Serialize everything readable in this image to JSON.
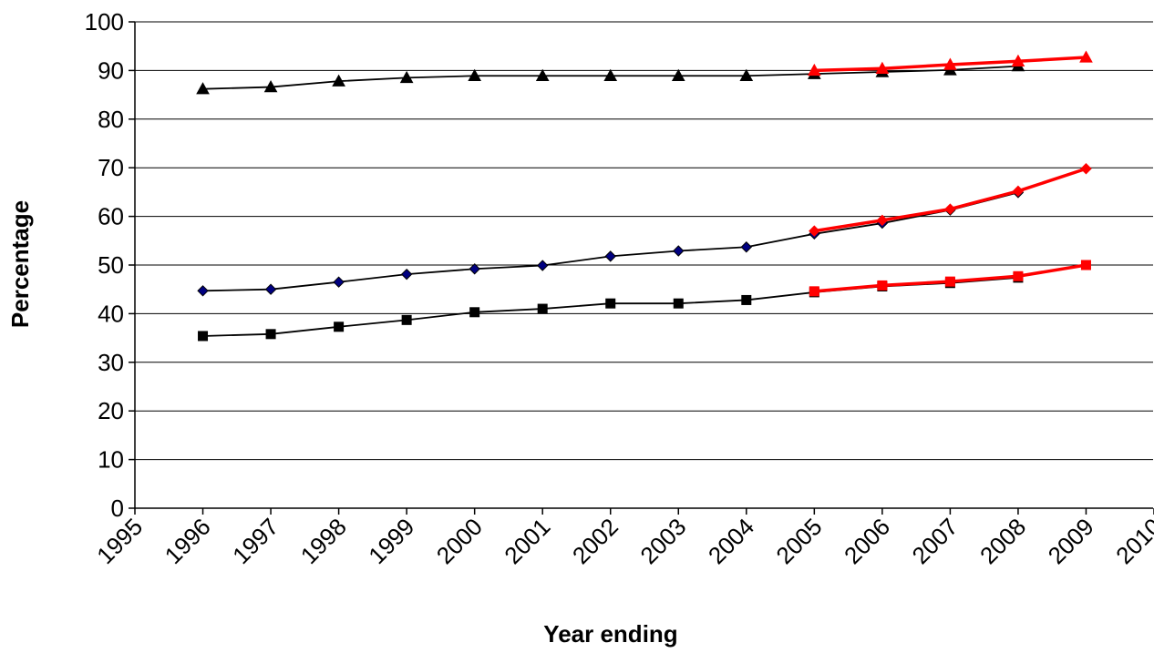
{
  "chart_data": {
    "type": "line",
    "title": "",
    "xlabel": "Year ending",
    "ylabel": "Percentage",
    "xlim": [
      1995,
      2010
    ],
    "ylim": [
      0,
      100
    ],
    "x_ticks": [
      1995,
      1996,
      1997,
      1998,
      1999,
      2000,
      2001,
      2002,
      2003,
      2004,
      2005,
      2006,
      2007,
      2008,
      2009,
      2010
    ],
    "y_ticks": [
      0,
      10,
      20,
      30,
      40,
      50,
      60,
      70,
      80,
      90,
      100
    ],
    "grid": "horizontal",
    "legend": "none",
    "series": [
      {
        "marker": "triangle",
        "color": "#000000",
        "marker_fill": "#000000",
        "x": [
          1996,
          1997,
          1998,
          1999,
          2000,
          2001,
          2002,
          2003,
          2004,
          2005,
          2006,
          2007,
          2008
        ],
        "values": [
          86.2,
          86.6,
          87.8,
          88.5,
          88.9,
          88.9,
          88.9,
          88.9,
          88.9,
          89.3,
          89.7,
          90.1,
          90.9
        ]
      },
      {
        "marker": "triangle",
        "color": "#ff0000",
        "marker_fill": "#ff0000",
        "x": [
          2005,
          2006,
          2007,
          2008,
          2009
        ],
        "values": [
          90.0,
          90.4,
          91.2,
          91.9,
          92.7
        ]
      },
      {
        "marker": "diamond",
        "color": "#000000",
        "marker_fill": "#000080",
        "x": [
          1996,
          1997,
          1998,
          1999,
          2000,
          2001,
          2002,
          2003,
          2004,
          2005,
          2006,
          2007,
          2008
        ],
        "values": [
          44.7,
          45.0,
          46.5,
          48.1,
          49.2,
          49.9,
          51.8,
          52.9,
          53.7,
          56.4,
          58.6,
          61.3,
          64.9
        ]
      },
      {
        "marker": "diamond",
        "color": "#ff0000",
        "marker_fill": "#ff0000",
        "x": [
          2005,
          2006,
          2007,
          2008,
          2009
        ],
        "values": [
          57.0,
          59.2,
          61.5,
          65.2,
          69.8
        ]
      },
      {
        "marker": "square",
        "color": "#000000",
        "marker_fill": "#000000",
        "x": [
          1996,
          1997,
          1998,
          1999,
          2000,
          2001,
          2002,
          2003,
          2004,
          2005,
          2006,
          2007,
          2008
        ],
        "values": [
          35.4,
          35.8,
          37.3,
          38.7,
          40.3,
          41.0,
          42.1,
          42.1,
          42.8,
          44.4,
          45.6,
          46.3,
          47.4
        ]
      },
      {
        "marker": "square",
        "color": "#ff0000",
        "marker_fill": "#ff0000",
        "x": [
          2005,
          2006,
          2007,
          2008,
          2009
        ],
        "values": [
          44.6,
          45.8,
          46.6,
          47.7,
          50.0
        ]
      }
    ]
  }
}
